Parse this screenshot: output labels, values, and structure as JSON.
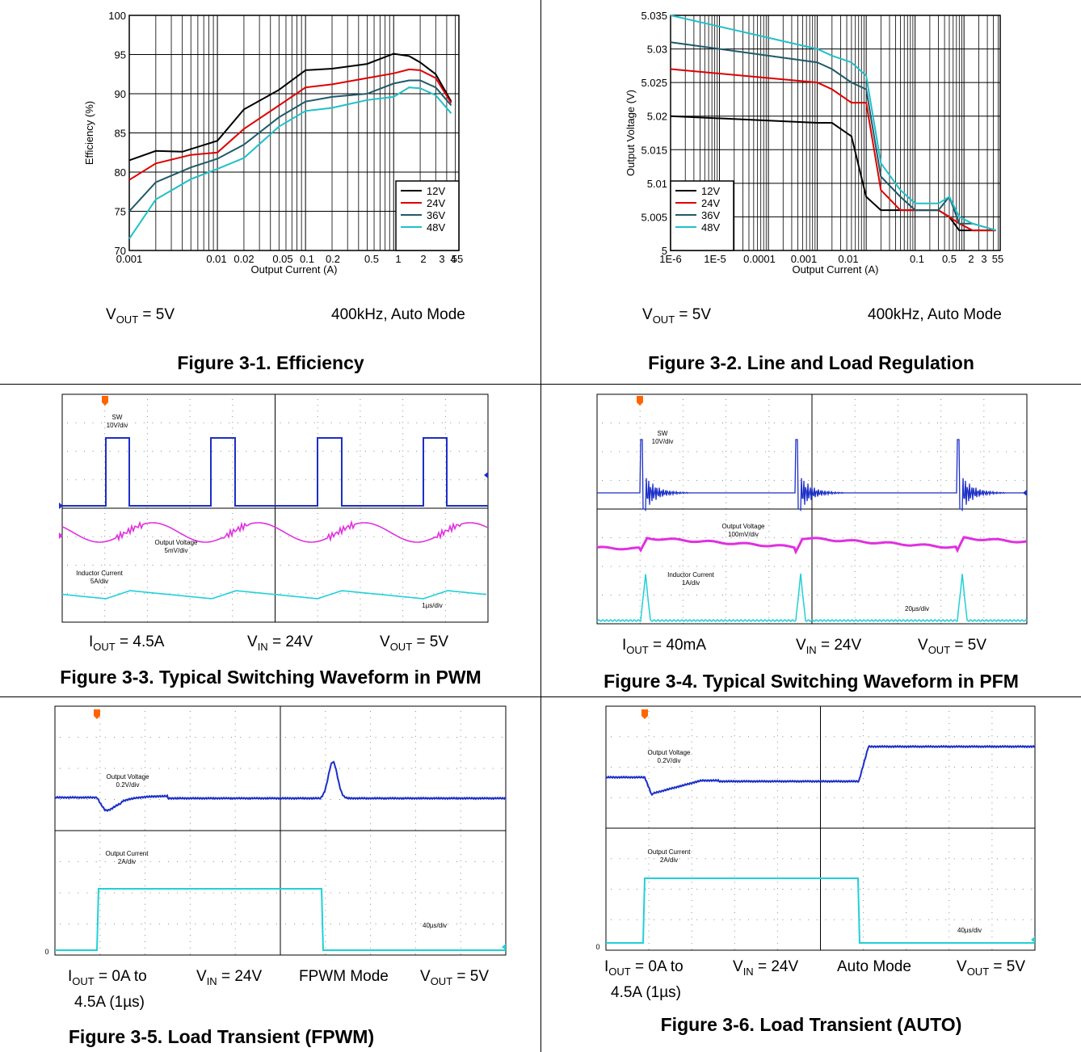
{
  "figures": [
    {
      "caption": "Figure 3-1. Efficiency",
      "conditions": [
        {
          "main": "V",
          "sub": "OUT",
          "rest": " = 5V"
        },
        {
          "main": "400kHz, Auto Mode",
          "sub": "",
          "rest": ""
        }
      ]
    },
    {
      "caption": "Figure 3-2. Line and Load Regulation",
      "conditions": [
        {
          "main": "V",
          "sub": "OUT",
          "rest": " = 5V"
        },
        {
          "main": "400kHz, Auto Mode",
          "sub": "",
          "rest": ""
        }
      ]
    },
    {
      "caption": "Figure 3-3. Typical Switching Waveform in PWM",
      "conditions": [
        {
          "main": "I",
          "sub": "OUT",
          "rest": " = 4.5A"
        },
        {
          "main": "V",
          "sub": "IN",
          "rest": " = 24V"
        },
        {
          "main": "V",
          "sub": "OUT",
          "rest": " = 5V"
        }
      ]
    },
    {
      "caption": "Figure 3-4. Typical Switching Waveform in PFM",
      "conditions": [
        {
          "main": "I",
          "sub": "OUT",
          "rest": " = 40mA"
        },
        {
          "main": "V",
          "sub": "IN",
          "rest": " = 24V"
        },
        {
          "main": "V",
          "sub": "OUT",
          "rest": " = 5V"
        }
      ]
    },
    {
      "caption": "Figure 3-5. Load Transient (FPWM)",
      "conditions": [
        {
          "main": "I",
          "sub": "OUT",
          "rest": " = 0A to"
        },
        {
          "main": "4.5A (1µs)",
          "sub": "",
          "rest": ""
        },
        {
          "main": "V",
          "sub": "IN",
          "rest": " = 24V"
        },
        {
          "main": "FPWM Mode",
          "sub": "",
          "rest": ""
        },
        {
          "main": "V",
          "sub": "OUT",
          "rest": " = 5V"
        }
      ]
    },
    {
      "caption": "Figure 3-6. Load Transient (AUTO)",
      "conditions": [
        {
          "main": "I",
          "sub": "OUT",
          "rest": " = 0A to"
        },
        {
          "main": "4.5A (1µs)",
          "sub": "",
          "rest": ""
        },
        {
          "main": "V",
          "sub": "IN",
          "rest": " = 24V"
        },
        {
          "main": "Auto Mode",
          "sub": "",
          "rest": ""
        },
        {
          "main": "V",
          "sub": "OUT",
          "rest": " = 5V"
        }
      ]
    }
  ],
  "chart_data": [
    {
      "type": "line",
      "xlabel": "Output Current (A)",
      "ylabel": "Efficiency (%)",
      "x_scale": "log",
      "xlim": [
        0.001,
        5.5
      ],
      "ylim": [
        70,
        100
      ],
      "y_ticks": [
        "70",
        "75",
        "80",
        "85",
        "90",
        "95",
        "100"
      ],
      "x_ticks": [
        "0.001",
        "0.01",
        "0.02",
        "0.05",
        "0.1",
        "0.2",
        "0.5",
        "1",
        "2",
        "3",
        "4",
        "55"
      ],
      "grid": true,
      "legend_position": "bottom-right",
      "series": [
        {
          "name": "12V",
          "color": "#000000",
          "x": [
            0.001,
            0.002,
            0.004,
            0.01,
            0.02,
            0.05,
            0.1,
            0.2,
            0.5,
            1,
            1.5,
            2,
            3,
            4.5
          ],
          "y": [
            81.5,
            82.7,
            82.6,
            84,
            88,
            90.5,
            93,
            93.2,
            93.8,
            95.1,
            94.8,
            94,
            92.5,
            89
          ]
        },
        {
          "name": "24V",
          "color": "#e00000",
          "x": [
            0.001,
            0.002,
            0.005,
            0.01,
            0.02,
            0.05,
            0.1,
            0.2,
            0.5,
            1,
            1.5,
            2,
            3,
            4.5
          ],
          "y": [
            79,
            81.1,
            82.2,
            82.5,
            85.5,
            88.5,
            90.8,
            91.2,
            92,
            92.6,
            93.1,
            93,
            92,
            88.8
          ]
        },
        {
          "name": "36V",
          "color": "#1f5a6a",
          "x": [
            0.001,
            0.002,
            0.005,
            0.01,
            0.02,
            0.05,
            0.1,
            0.2,
            0.5,
            1,
            1.5,
            2,
            3,
            4.5
          ],
          "y": [
            75,
            78.7,
            80.6,
            81.7,
            83.5,
            87,
            89,
            89.6,
            90,
            91.3,
            91.7,
            91.7,
            90.8,
            88.5
          ]
        },
        {
          "name": "48V",
          "color": "#20c0c8",
          "x": [
            0.001,
            0.002,
            0.005,
            0.01,
            0.02,
            0.05,
            0.1,
            0.2,
            0.5,
            1,
            1.5,
            2,
            3,
            4.5
          ],
          "y": [
            71.5,
            76.5,
            79.1,
            80.4,
            81.8,
            85.8,
            87.8,
            88.2,
            89.2,
            89.6,
            90.8,
            90.7,
            89.8,
            87.5
          ]
        }
      ]
    },
    {
      "type": "line",
      "xlabel": "Output Current (A)",
      "ylabel": "Output Voltage (V)",
      "x_scale": "log",
      "xlim": [
        1e-06,
        5.5
      ],
      "ylim": [
        5,
        5.035
      ],
      "y_ticks": [
        "5",
        "5.005",
        "5.01",
        "5.015",
        "5.02",
        "5.025",
        "5.03",
        "5.035"
      ],
      "x_ticks": [
        "1E-6",
        "1E-5",
        "0.0001",
        "0.001",
        "0.01",
        "0.1",
        "0.5",
        "2",
        "3",
        "55"
      ],
      "grid": true,
      "legend_position": "bottom-left",
      "series": [
        {
          "name": "12V",
          "color": "#000000",
          "x": [
            1e-06,
            0.001,
            0.002,
            0.005,
            0.01,
            0.02,
            0.05,
            0.1,
            0.3,
            0.5,
            0.8,
            1.5,
            4.5
          ],
          "y": [
            5.02,
            5.019,
            5.019,
            5.017,
            5.008,
            5.006,
            5.006,
            5.006,
            5.006,
            5.005,
            5.003,
            5.003,
            5.003
          ]
        },
        {
          "name": "24V",
          "color": "#e00000",
          "x": [
            1e-06,
            0.001,
            0.002,
            0.005,
            0.01,
            0.02,
            0.05,
            0.1,
            0.3,
            0.5,
            0.8,
            1.5,
            4.5
          ],
          "y": [
            5.027,
            5.025,
            5.024,
            5.022,
            5.022,
            5.009,
            5.006,
            5.006,
            5.006,
            5.005,
            5.004,
            5.003,
            5.003
          ]
        },
        {
          "name": "36V",
          "color": "#1f5a6a",
          "x": [
            1e-06,
            0.001,
            0.002,
            0.005,
            0.01,
            0.02,
            0.05,
            0.1,
            0.3,
            0.5,
            0.8,
            1.5,
            4.5
          ],
          "y": [
            5.031,
            5.028,
            5.027,
            5.025,
            5.024,
            5.011,
            5.008,
            5.006,
            5.006,
            5.008,
            5.004,
            5.004,
            5.003
          ]
        },
        {
          "name": "48V",
          "color": "#20c0c8",
          "x": [
            1e-06,
            0.001,
            0.002,
            0.005,
            0.01,
            0.02,
            0.05,
            0.1,
            0.3,
            0.5,
            0.8,
            1.5,
            4.5
          ],
          "y": [
            5.035,
            5.03,
            5.029,
            5.028,
            5.026,
            5.013,
            5.009,
            5.007,
            5.007,
            5.008,
            5.005,
            5.004,
            5.003
          ]
        }
      ]
    },
    {
      "type": "line",
      "scope": true,
      "timebase": "1µs/div",
      "channels": [
        {
          "label": "SW",
          "scale": "10V/div",
          "color": "#1c2fc8"
        },
        {
          "label": "Output Voltage",
          "scale": "5mV/div",
          "color": "#e030e0"
        },
        {
          "label": "Inductor Current",
          "scale": "5A/div",
          "color": "#20d0d8"
        }
      ]
    },
    {
      "type": "line",
      "scope": true,
      "timebase": "20µs/div",
      "channels": [
        {
          "label": "SW",
          "scale": "10V/div",
          "color": "#1c2fc8"
        },
        {
          "label": "Output Voltage",
          "scale": "100mV/div",
          "color": "#e030e0"
        },
        {
          "label": "Inductor Current",
          "scale": "1A/div",
          "color": "#20d0d8"
        }
      ]
    },
    {
      "type": "line",
      "scope": true,
      "timebase": "40µs/div",
      "zero_label": "0",
      "channels": [
        {
          "label": "Output Voltage",
          "scale": "0.2V/div",
          "color": "#1c2fc8"
        },
        {
          "label": "Output Current",
          "scale": "2A/div",
          "color": "#20d0d8"
        }
      ]
    },
    {
      "type": "line",
      "scope": true,
      "timebase": "40µs/div",
      "zero_label": "0",
      "channels": [
        {
          "label": "Output Voltage",
          "scale": "0.2V/div",
          "color": "#1c2fc8"
        },
        {
          "label": "Output Current",
          "scale": "2A/div",
          "color": "#20d0d8"
        }
      ]
    }
  ],
  "colors": {
    "trigger_marker": "#ff6600",
    "grid": "#000000"
  }
}
